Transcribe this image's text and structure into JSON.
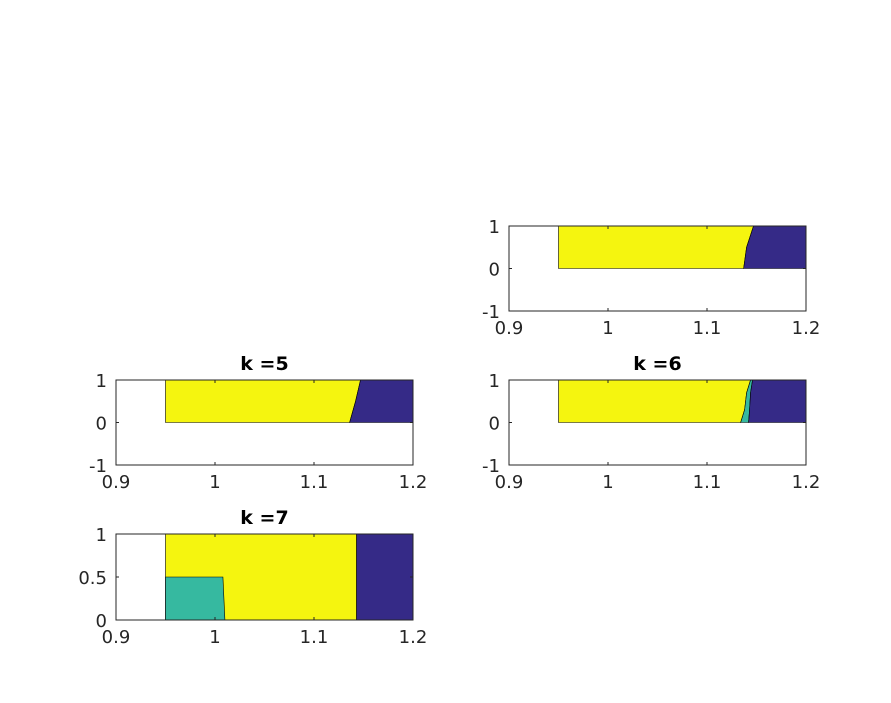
{
  "colors": {
    "yellow": "#f5f50f",
    "navy": "#352a87",
    "teal": "#36b9a0",
    "axis": "#262626"
  },
  "chart_data": [
    {
      "type": "area",
      "title": "",
      "xlim": [
        0.9,
        1.2
      ],
      "ylim": [
        -1,
        1
      ],
      "xticks": [
        "0.9",
        "1",
        "1.1",
        "1.2"
      ],
      "yticks": [
        "1",
        "0",
        "-1"
      ],
      "regions": [
        {
          "color": "yellow",
          "polygon": [
            [
              0.95,
              0
            ],
            [
              0.95,
              1
            ],
            [
              1.147,
              1
            ],
            [
              1.14,
              0.5
            ],
            [
              1.137,
              0
            ]
          ]
        },
        {
          "color": "navy",
          "polygon": [
            [
              1.137,
              0
            ],
            [
              1.14,
              0.5
            ],
            [
              1.147,
              1
            ],
            [
              1.2,
              1
            ],
            [
              1.2,
              0
            ]
          ]
        }
      ]
    },
    {
      "type": "area",
      "title": "k =5",
      "xlim": [
        0.9,
        1.2
      ],
      "ylim": [
        -1,
        1
      ],
      "xticks": [
        "0.9",
        "1",
        "1.1",
        "1.2"
      ],
      "yticks": [
        "1",
        "0",
        "-1"
      ],
      "regions": [
        {
          "color": "yellow",
          "polygon": [
            [
              0.95,
              0
            ],
            [
              0.95,
              1
            ],
            [
              1.147,
              1
            ],
            [
              1.142,
              0.5
            ],
            [
              1.136,
              0
            ]
          ]
        },
        {
          "color": "navy",
          "polygon": [
            [
              1.136,
              0
            ],
            [
              1.142,
              0.5
            ],
            [
              1.147,
              1
            ],
            [
              1.2,
              1
            ],
            [
              1.2,
              0
            ]
          ]
        }
      ]
    },
    {
      "type": "area",
      "title": "k =6",
      "xlim": [
        0.9,
        1.2
      ],
      "ylim": [
        -1,
        1
      ],
      "xticks": [
        "0.9",
        "1",
        "1.1",
        "1.2"
      ],
      "yticks": [
        "1",
        "0",
        "-1"
      ],
      "regions": [
        {
          "color": "yellow",
          "polygon": [
            [
              0.95,
              0
            ],
            [
              0.95,
              1
            ],
            [
              1.144,
              1
            ],
            [
              1.14,
              0.7
            ],
            [
              1.138,
              0.3
            ],
            [
              1.134,
              0
            ]
          ]
        },
        {
          "color": "teal",
          "polygon": [
            [
              1.134,
              0
            ],
            [
              1.138,
              0.3
            ],
            [
              1.14,
              0.7
            ],
            [
              1.144,
              1
            ],
            [
              1.146,
              1
            ],
            [
              1.144,
              0.7
            ],
            [
              1.143,
              0.3
            ],
            [
              1.142,
              0
            ]
          ]
        },
        {
          "color": "navy",
          "polygon": [
            [
              1.142,
              0
            ],
            [
              1.143,
              0.3
            ],
            [
              1.144,
              0.7
            ],
            [
              1.146,
              1
            ],
            [
              1.2,
              1
            ],
            [
              1.2,
              0
            ]
          ]
        }
      ]
    },
    {
      "type": "area",
      "title": "k =7",
      "xlim": [
        0.9,
        1.2
      ],
      "ylim": [
        0,
        1
      ],
      "xticks": [
        "0.9",
        "1",
        "1.1",
        "1.2"
      ],
      "yticks": [
        "1",
        "0.5",
        "0"
      ],
      "regions": [
        {
          "color": "yellow",
          "polygon": [
            [
              0.95,
              0
            ],
            [
              0.95,
              1
            ],
            [
              1.143,
              1
            ],
            [
              1.143,
              0
            ]
          ]
        },
        {
          "color": "teal",
          "polygon": [
            [
              0.95,
              0
            ],
            [
              0.95,
              0.5
            ],
            [
              1.008,
              0.5
            ],
            [
              1.01,
              0
            ]
          ]
        },
        {
          "color": "navy",
          "polygon": [
            [
              1.143,
              0
            ],
            [
              1.143,
              1
            ],
            [
              1.2,
              1
            ],
            [
              1.2,
              0
            ]
          ]
        }
      ]
    }
  ]
}
